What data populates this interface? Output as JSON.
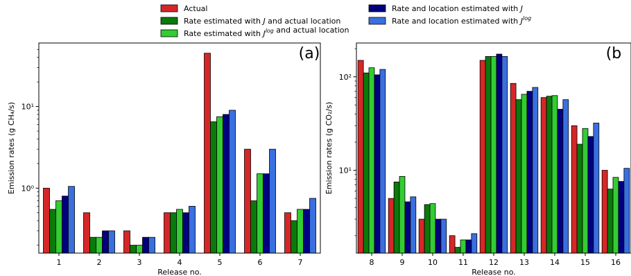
{
  "legend": {
    "placement": "top-center",
    "items": [
      {
        "label": "Actual",
        "color": "#d62728"
      },
      {
        "label": "Rate estimated with J and actual location",
        "color": "#0a7a0a"
      },
      {
        "label": "Rate estimated with J^log and actual location",
        "color": "#33cc33"
      },
      {
        "label": "Rate and location estimated with J",
        "color": "#000080"
      },
      {
        "label": "Rate and location estimated with J^log",
        "color": "#3a6fe0"
      }
    ]
  },
  "chart_data": [
    {
      "type": "bar",
      "panel_label": "(a)",
      "xlabel": "Release no.",
      "ylabel": "Emission rates (g CH₄/s)",
      "yscale": "log",
      "ylim": [
        0.16,
        60
      ],
      "yticks": [
        1,
        10
      ],
      "ytick_labels": [
        "10⁰",
        "10¹"
      ],
      "grid": false,
      "categories": [
        "1",
        "2",
        "3",
        "4",
        "5",
        "6",
        "7"
      ],
      "series": [
        {
          "name": "Actual",
          "values": [
            1.0,
            0.5,
            0.3,
            0.5,
            45,
            3.0,
            0.5
          ]
        },
        {
          "name": "Rate estimated with J and actual location",
          "values": [
            0.55,
            0.25,
            0.2,
            0.5,
            6.5,
            0.7,
            0.4
          ]
        },
        {
          "name": "Rate estimated with J^log and actual location",
          "values": [
            0.7,
            0.25,
            0.2,
            0.55,
            7.5,
            1.5,
            0.55
          ]
        },
        {
          "name": "Rate and location estimated with J",
          "values": [
            0.8,
            0.3,
            0.25,
            0.5,
            8.0,
            1.5,
            0.55
          ]
        },
        {
          "name": "Rate and location estimated with J^log",
          "values": [
            1.05,
            0.3,
            0.25,
            0.6,
            9.0,
            3.0,
            0.75
          ]
        }
      ]
    },
    {
      "type": "bar",
      "panel_label": "(b",
      "xlabel": "Release no.",
      "ylabel": "Emission rates (g CO₂/s)",
      "yscale": "log",
      "ylim": [
        1.3,
        230
      ],
      "yticks": [
        10,
        100
      ],
      "ytick_labels": [
        "10¹",
        "10²"
      ],
      "grid": false,
      "categories": [
        "8",
        "9",
        "10",
        "11",
        "12",
        "13",
        "14",
        "15",
        "16"
      ],
      "series": [
        {
          "name": "Actual",
          "values": [
            150,
            5.0,
            3.0,
            2.0,
            150,
            85,
            60,
            30,
            10
          ]
        },
        {
          "name": "Rate estimated with J and actual location",
          "values": [
            110,
            7.5,
            4.3,
            1.5,
            165,
            57,
            62,
            19,
            6.3
          ]
        },
        {
          "name": "Rate estimated with J^log and actual location",
          "values": [
            125,
            8.6,
            4.4,
            1.8,
            165,
            65,
            63,
            28,
            8.4
          ]
        },
        {
          "name": "Rate and location estimated with J",
          "values": [
            105,
            4.6,
            3.0,
            1.8,
            175,
            70,
            45,
            23,
            7.6
          ]
        },
        {
          "name": "Rate and location estimated with J^log",
          "values": [
            120,
            5.2,
            3.0,
            2.1,
            165,
            77,
            57,
            32,
            10.5
          ]
        }
      ]
    }
  ]
}
